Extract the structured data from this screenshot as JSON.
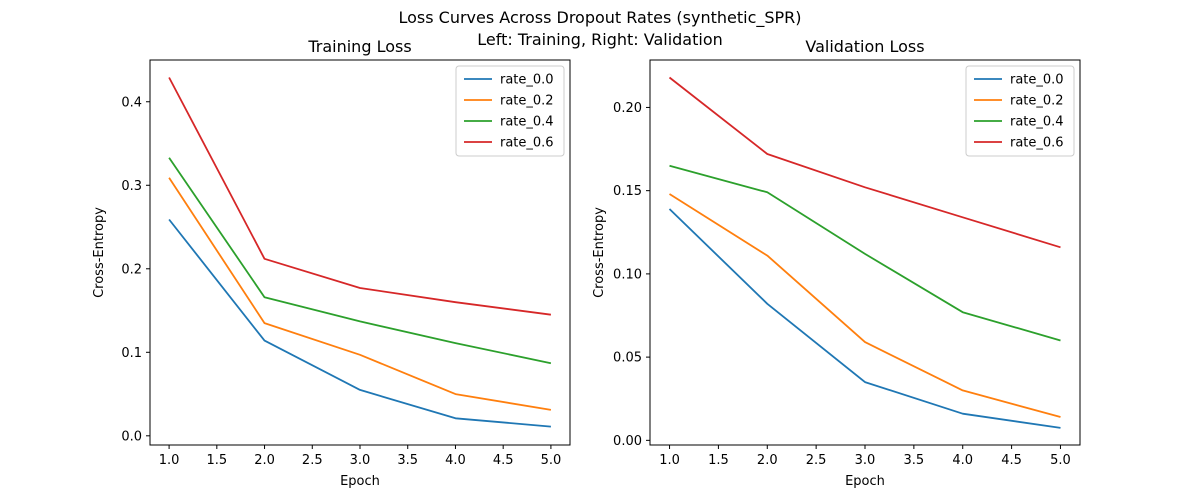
{
  "figure": {
    "suptitle_line1": "Loss Curves Across Dropout Rates (synthetic_SPR)",
    "suptitle_line2": "Left: Training, Right: Validation"
  },
  "chart_data": [
    {
      "type": "line",
      "title": "Training Loss",
      "xlabel": "Epoch",
      "ylabel": "Cross-Entropy",
      "x": [
        1,
        2,
        3,
        4,
        5
      ],
      "xlim": [
        0.8,
        5.2
      ],
      "ylim": [
        -0.011,
        0.45
      ],
      "xticks": [
        "1.0",
        "1.5",
        "2.0",
        "2.5",
        "3.0",
        "3.5",
        "4.0",
        "4.5",
        "5.0"
      ],
      "yticks": [
        "0.0",
        "0.1",
        "0.2",
        "0.3",
        "0.4"
      ],
      "grid": false,
      "legend_position": "top-right",
      "series": [
        {
          "name": "rate_0.0",
          "color": "#1f77b4",
          "values": [
            0.259,
            0.114,
            0.055,
            0.021,
            0.011
          ]
        },
        {
          "name": "rate_0.2",
          "color": "#ff7f0e",
          "values": [
            0.309,
            0.135,
            0.097,
            0.05,
            0.031
          ]
        },
        {
          "name": "rate_0.4",
          "color": "#2ca02c",
          "values": [
            0.333,
            0.166,
            0.137,
            0.111,
            0.087
          ]
        },
        {
          "name": "rate_0.6",
          "color": "#d62728",
          "values": [
            0.429,
            0.212,
            0.177,
            0.16,
            0.145
          ]
        }
      ]
    },
    {
      "type": "line",
      "title": "Validation Loss",
      "xlabel": "Epoch",
      "ylabel": "Cross-Entropy",
      "x": [
        1,
        2,
        3,
        4,
        5
      ],
      "xlim": [
        0.8,
        5.2
      ],
      "ylim": [
        -0.0028,
        0.2285
      ],
      "xticks": [
        "1.0",
        "1.5",
        "2.0",
        "2.5",
        "3.0",
        "3.5",
        "4.0",
        "4.5",
        "5.0"
      ],
      "yticks": [
        "0.00",
        "0.05",
        "0.10",
        "0.15",
        "0.20"
      ],
      "grid": false,
      "legend_position": "top-right",
      "series": [
        {
          "name": "rate_0.0",
          "color": "#1f77b4",
          "values": [
            0.139,
            0.082,
            0.035,
            0.016,
            0.0075
          ]
        },
        {
          "name": "rate_0.2",
          "color": "#ff7f0e",
          "values": [
            0.148,
            0.111,
            0.059,
            0.03,
            0.014
          ]
        },
        {
          "name": "rate_0.4",
          "color": "#2ca02c",
          "values": [
            0.165,
            0.149,
            0.112,
            0.077,
            0.06
          ]
        },
        {
          "name": "rate_0.6",
          "color": "#d62728",
          "values": [
            0.218,
            0.172,
            0.152,
            0.134,
            0.116
          ]
        }
      ]
    }
  ]
}
